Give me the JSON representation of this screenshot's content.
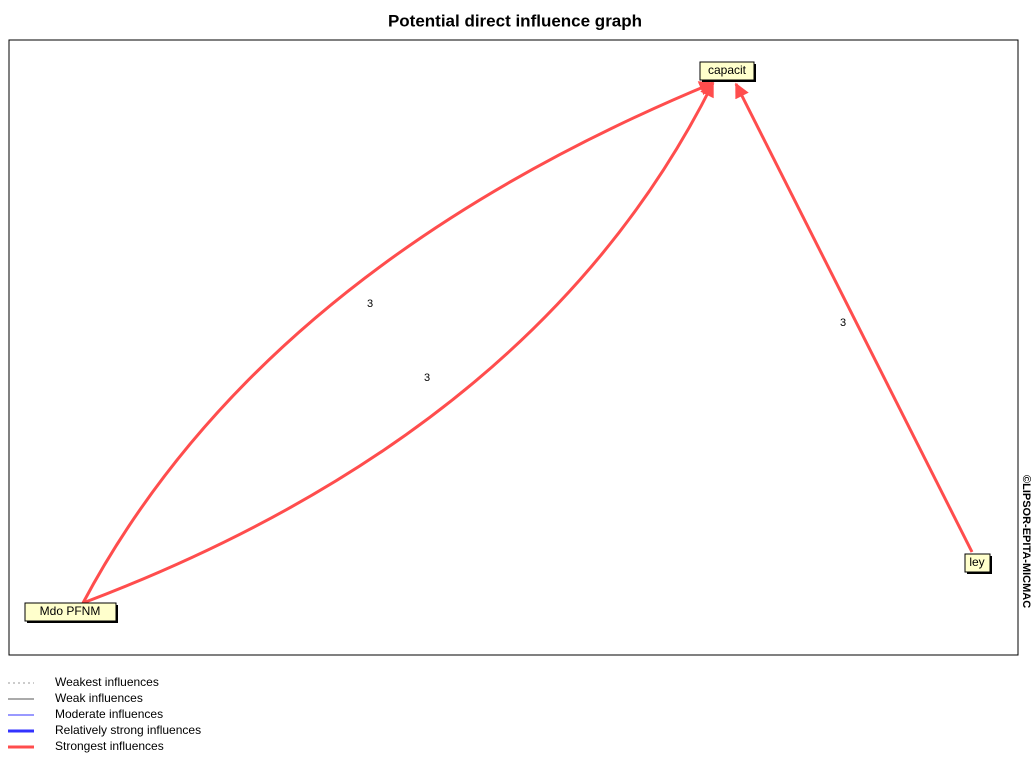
{
  "title": "Potential direct influence graph",
  "nodes": [
    {
      "label": "capacit"
    },
    {
      "label": "ley"
    },
    {
      "label": "Mdo PFNM"
    }
  ],
  "edges": [
    {
      "from": "Mdo PFNM",
      "to": "capacit",
      "weight": 3
    },
    {
      "from": "capacit",
      "to": "Mdo PFNM",
      "weight": 3
    },
    {
      "from": "ley",
      "to": "capacit",
      "weight": 3
    }
  ],
  "watermark": "©LIPSOR-EPITA-MICMAC",
  "legend": [
    "Weakest influences",
    "Weak influences",
    "Moderate influences",
    "Relatively strong influences",
    "Strongest influences"
  ]
}
